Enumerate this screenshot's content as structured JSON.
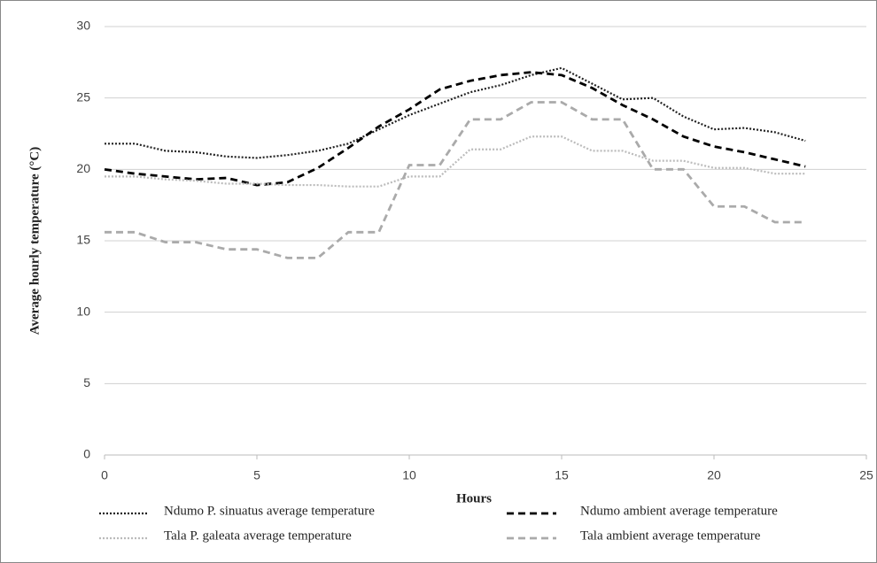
{
  "chart_data": {
    "type": "line",
    "x_label": "Hours",
    "y_label": "Average hourly temperature (°C)",
    "x": [
      0,
      1,
      2,
      3,
      4,
      5,
      6,
      7,
      8,
      9,
      10,
      11,
      12,
      13,
      14,
      15,
      16,
      17,
      18,
      19,
      20,
      21,
      22,
      23
    ],
    "xlim": [
      0,
      25
    ],
    "xticks": [
      0,
      5,
      10,
      15,
      20,
      25
    ],
    "ylim": [
      0,
      30
    ],
    "yticks": [
      0,
      5,
      10,
      15,
      20,
      25,
      30
    ],
    "grid": true,
    "series": [
      {
        "name": "Ndumo P. sinuatus average temperature",
        "color": "#222222",
        "style": "dotted",
        "values": [
          21.8,
          21.8,
          21.3,
          21.2,
          20.9,
          20.8,
          21.0,
          21.3,
          21.8,
          22.8,
          23.8,
          24.6,
          25.4,
          25.9,
          26.6,
          27.1,
          26.0,
          24.9,
          25.0,
          23.7,
          22.8,
          22.9,
          22.6,
          22.0
        ]
      },
      {
        "name": "Ndumo ambient average temperature",
        "color": "#000000",
        "style": "dashed",
        "values": [
          20.0,
          19.7,
          19.5,
          19.3,
          19.4,
          18.9,
          19.1,
          20.1,
          21.5,
          23.0,
          24.2,
          25.6,
          26.2,
          26.6,
          26.8,
          26.6,
          25.7,
          24.5,
          23.5,
          22.3,
          21.6,
          21.2,
          20.7,
          20.2
        ]
      },
      {
        "name": "Tala P. galeata average temperature",
        "color": "#bbbbbb",
        "style": "dotted",
        "values": [
          19.5,
          19.5,
          19.3,
          19.2,
          19.0,
          19.0,
          18.9,
          18.9,
          18.8,
          18.8,
          19.5,
          19.5,
          21.4,
          21.4,
          22.3,
          22.3,
          21.3,
          21.3,
          20.6,
          20.6,
          20.1,
          20.1,
          19.7,
          19.7
        ]
      },
      {
        "name": "Tala ambient average temperature",
        "color": "#aaaaaa",
        "style": "dashed",
        "values": [
          15.6,
          15.6,
          14.9,
          14.9,
          14.4,
          14.4,
          13.8,
          13.8,
          15.6,
          15.6,
          20.3,
          20.3,
          23.5,
          23.5,
          24.7,
          24.7,
          23.5,
          23.5,
          20.0,
          20.0,
          17.4,
          17.4,
          16.3,
          16.3
        ]
      }
    ]
  }
}
